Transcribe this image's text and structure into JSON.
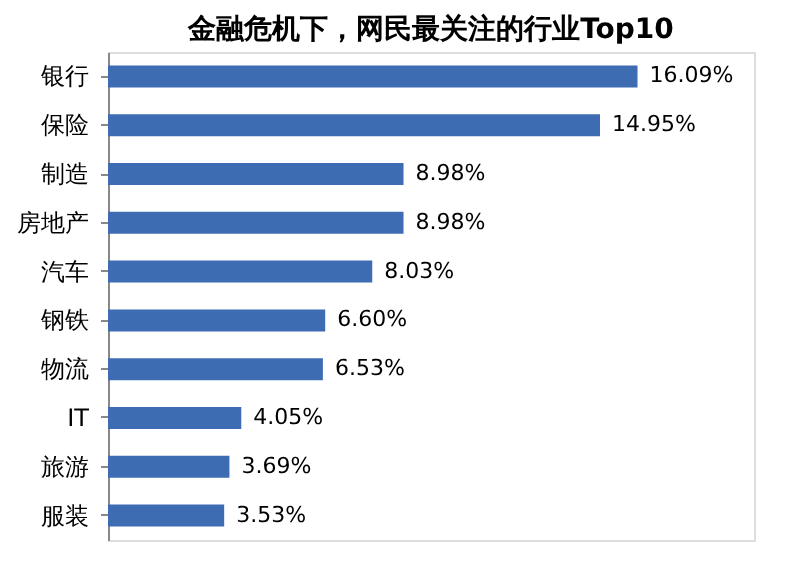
{
  "chart_data": {
    "type": "bar",
    "orientation": "horizontal",
    "title": "金融危机下，网民最关注的行业Top10",
    "categories": [
      "银行",
      "保险",
      "制造",
      "房地产",
      "汽车",
      "钢铁",
      "物流",
      "IT",
      "旅游",
      "服装"
    ],
    "values": [
      16.09,
      14.95,
      8.98,
      8.98,
      8.03,
      6.6,
      6.53,
      4.05,
      3.69,
      3.53
    ],
    "value_labels": [
      "16.09%",
      "14.95%",
      "8.98%",
      "8.98%",
      "8.03%",
      "6.60%",
      "6.53%",
      "4.05%",
      "3.69%",
      "3.53%"
    ],
    "color": "#3d6cb3",
    "grid": false
  }
}
